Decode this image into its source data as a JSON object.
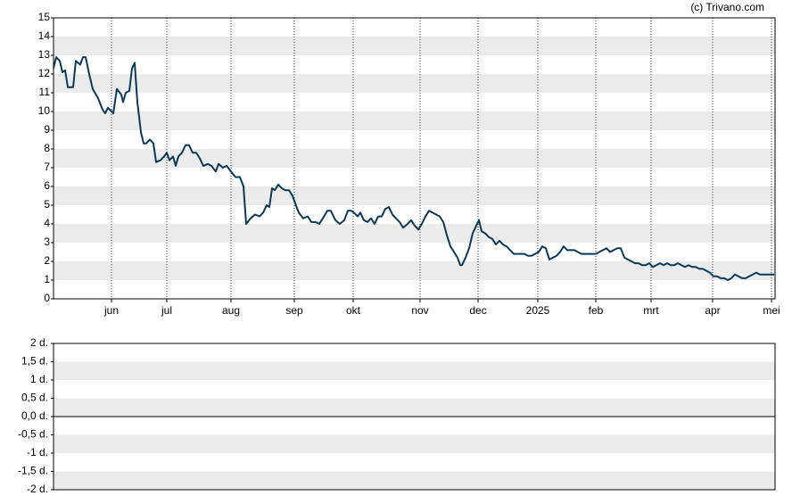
{
  "credit": "(c) Trivano.com",
  "chart_data": [
    {
      "type": "line",
      "x": [
        0,
        0.75,
        1.75,
        2.5,
        3.25,
        4,
        5.5,
        6.25,
        7.5,
        8.25,
        9,
        10,
        11,
        12.5,
        13.75,
        14.5,
        15.25,
        16.75,
        17.75,
        19,
        19.5,
        20.25,
        21.25,
        22,
        22.75,
        23.5,
        24.5,
        25.25,
        26,
        27,
        28,
        28.75,
        30,
        31,
        31.75,
        32.5,
        33.5,
        34.25,
        35,
        36,
        37,
        38,
        39,
        40,
        41,
        42,
        43.25,
        44.25,
        45.5,
        46.25,
        47.5,
        48.5,
        49.75,
        51,
        52.25,
        53.25,
        54,
        55.25,
        56.5,
        57.75,
        58.75,
        59.75,
        60.5,
        61.25,
        62,
        63,
        64,
        65,
        66,
        67,
        67.75,
        68.75,
        70,
        71.25,
        72.25,
        73.5,
        74.5,
        75.5,
        76.75,
        77.75,
        79,
        80.25,
        81.5,
        82.5,
        83.5,
        84.25,
        85.25,
        86,
        87,
        88,
        89,
        90,
        91,
        92,
        93,
        94,
        95,
        96,
        97,
        98,
        99.25,
        100.25,
        101.25,
        102.25,
        103.25,
        104.25,
        105.25,
        106.25,
        107.25,
        108.25,
        109.25,
        110.25,
        111.25,
        112.25,
        113.25,
        114,
        114.5,
        115.5,
        116.5,
        117.5,
        118.5,
        119.25,
        120,
        121,
        122,
        123,
        124,
        125,
        126,
        127,
        128,
        129,
        130,
        131,
        132,
        133,
        134,
        135,
        136,
        137,
        138,
        139,
        140,
        141,
        142,
        143,
        144,
        145,
        146,
        147,
        148,
        149,
        150,
        151,
        152,
        153,
        154,
        155,
        156,
        157,
        158,
        159,
        160,
        161,
        162,
        163,
        164,
        165,
        166,
        167,
        168,
        169,
        170,
        171,
        172,
        173,
        174,
        175,
        176,
        177,
        178,
        179,
        180,
        181,
        182,
        183,
        184,
        185,
        186,
        187,
        188,
        189,
        190,
        191,
        192,
        193,
        194,
        195,
        196,
        197,
        198,
        199,
        200,
        201,
        202
      ],
      "series": [
        {
          "color": "#0d3857",
          "values": [
            12.3,
            12.9,
            12.7,
            12.1,
            12.2,
            11.3,
            11.3,
            12.7,
            12.5,
            12.9,
            12.9,
            12.0,
            11.2,
            10.7,
            10.1,
            9.9,
            10.2,
            9.9,
            11.2,
            10.9,
            10.5,
            11.0,
            11.1,
            12.3,
            12.6,
            10.5,
            8.9,
            8.3,
            8.3,
            8.5,
            8.3,
            7.3,
            7.4,
            7.6,
            7.8,
            7.4,
            7.6,
            7.1,
            7.6,
            7.8,
            8.2,
            8.2,
            7.8,
            7.8,
            7.5,
            7.1,
            7.2,
            7.1,
            6.8,
            7.2,
            7.0,
            7.1,
            6.8,
            6.5,
            6.5,
            6.0,
            4.0,
            4.3,
            4.5,
            4.4,
            4.6,
            5.0,
            4.9,
            5.9,
            5.8,
            6.1,
            5.9,
            5.8,
            5.8,
            5.5,
            5.1,
            4.6,
            4.3,
            4.4,
            4.1,
            4.1,
            4.0,
            4.3,
            4.7,
            4.7,
            4.2,
            4.0,
            4.2,
            4.7,
            4.7,
            4.6,
            4.4,
            4.6,
            4.2,
            4.1,
            4.3,
            4.0,
            4.4,
            4.4,
            4.8,
            4.9,
            4.5,
            4.3,
            4.1,
            3.8,
            4.0,
            4.2,
            3.9,
            3.7,
            4.0,
            4.4,
            4.7,
            4.6,
            4.5,
            4.4,
            4.1,
            3.4,
            2.8,
            2.5,
            2.2,
            1.8,
            1.8,
            2.2,
            2.7,
            3.5,
            3.9,
            4.2,
            3.6,
            3.5,
            3.3,
            3.2,
            2.9,
            3.1,
            2.9,
            2.8,
            2.6,
            2.4,
            2.4,
            2.4,
            2.4,
            2.3,
            2.3,
            2.4,
            2.5,
            2.8,
            2.7,
            2.1,
            2.2,
            2.3,
            2.5,
            2.8,
            2.6,
            2.6,
            2.6,
            2.5,
            2.4,
            2.4,
            2.4,
            2.4,
            2.4,
            2.5,
            2.6,
            2.7,
            2.5,
            2.6,
            2.7,
            2.7,
            2.2,
            2.1,
            2.0,
            1.9,
            1.9,
            1.8,
            1.8,
            1.9,
            1.7,
            1.8,
            1.9,
            1.8,
            1.9,
            1.8,
            1.8,
            1.9,
            1.8,
            1.7,
            1.8,
            1.7,
            1.7,
            1.6,
            1.6,
            1.5,
            1.4,
            1.2,
            1.2,
            1.1,
            1.1,
            1.0,
            1.1,
            1.3,
            1.2,
            1.1,
            1.1,
            1.2,
            1.3,
            1.4,
            1.3,
            1.3,
            1.3,
            1.3,
            1.3
          ]
        }
      ],
      "xlim": [
        0,
        202.25
      ],
      "xticks": [
        {
          "value": 16.25,
          "label": "jun"
        },
        {
          "value": 31.75,
          "label": "jul"
        },
        {
          "value": 49.75,
          "label": "aug"
        },
        {
          "value": 67.5,
          "label": "sep"
        },
        {
          "value": 84,
          "label": "okt"
        },
        {
          "value": 102.75,
          "label": "nov"
        },
        {
          "value": 119,
          "label": "dec"
        },
        {
          "value": 135.75,
          "label": "2025"
        },
        {
          "value": 152,
          "label": "feb"
        },
        {
          "value": 167.5,
          "label": "mrt"
        },
        {
          "value": 184.75,
          "label": "apr"
        },
        {
          "value": 201.25,
          "label": "mei"
        }
      ],
      "ylim": [
        0,
        15
      ],
      "yticks": [
        0,
        1,
        2,
        3,
        4,
        5,
        6,
        7,
        8,
        9,
        10,
        11,
        12,
        13,
        14,
        15
      ],
      "grid": true
    },
    {
      "type": "bar",
      "ylim": [
        -2,
        2
      ],
      "yticks": [
        {
          "value": -2,
          "label": "-2 d."
        },
        {
          "value": -1.5,
          "label": "-1,5 d."
        },
        {
          "value": -1,
          "label": "-1 d."
        },
        {
          "value": -0.5,
          "label": "-0,5 d."
        },
        {
          "value": 0,
          "label": "0,0 d."
        },
        {
          "value": 0.5,
          "label": "0,5 d."
        },
        {
          "value": 1,
          "label": "1 d."
        },
        {
          "value": 1.5,
          "label": "1,5 d."
        },
        {
          "value": 2,
          "label": "2 d."
        }
      ],
      "grid": true
    }
  ]
}
